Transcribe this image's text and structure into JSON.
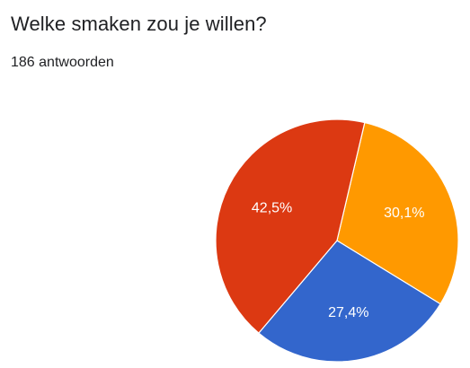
{
  "header": {
    "title": "Welke smaken zou je willen?",
    "response_count": "186 antwoorden"
  },
  "chart_data": {
    "type": "pie",
    "title": "",
    "slices": [
      {
        "value": 30.1,
        "label": "30,1%",
        "color": "#ff9900"
      },
      {
        "value": 27.4,
        "label": "27,4%",
        "color": "#3366cc"
      },
      {
        "value": 42.5,
        "label": "42,5%",
        "color": "#dc3912"
      }
    ],
    "start_angle_deg": 13.2,
    "legend": "none"
  }
}
